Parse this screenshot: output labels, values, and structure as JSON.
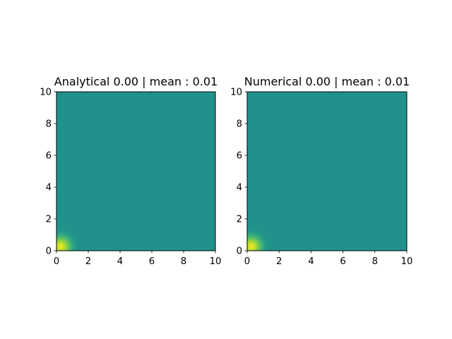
{
  "chart_data": [
    {
      "type": "heatmap",
      "title": "Analytical 0.00 | mean : 0.01",
      "xlabel": "",
      "ylabel": "",
      "xlim": [
        0,
        10
      ],
      "ylim": [
        0,
        10
      ],
      "xticks": [
        "0",
        "2",
        "4",
        "6",
        "8",
        "10"
      ],
      "yticks": [
        "0",
        "2",
        "4",
        "6",
        "8",
        "10"
      ],
      "colormap": "viridis",
      "background_color": "#21918c",
      "peak_color": "#fde725",
      "peak_location": [
        0.25,
        0.25
      ],
      "peak_extent": 1.2,
      "grid": false
    },
    {
      "type": "heatmap",
      "title": "Numerical 0.00 | mean : 0.01",
      "xlabel": "",
      "ylabel": "",
      "xlim": [
        0,
        10
      ],
      "ylim": [
        0,
        10
      ],
      "xticks": [
        "0",
        "2",
        "4",
        "6",
        "8",
        "10"
      ],
      "yticks": [
        "0",
        "2",
        "4",
        "6",
        "8",
        "10"
      ],
      "colormap": "viridis",
      "background_color": "#21918c",
      "peak_color": "#fde725",
      "peak_location": [
        0.25,
        0.25
      ],
      "peak_extent": 1.2,
      "grid": false
    }
  ]
}
